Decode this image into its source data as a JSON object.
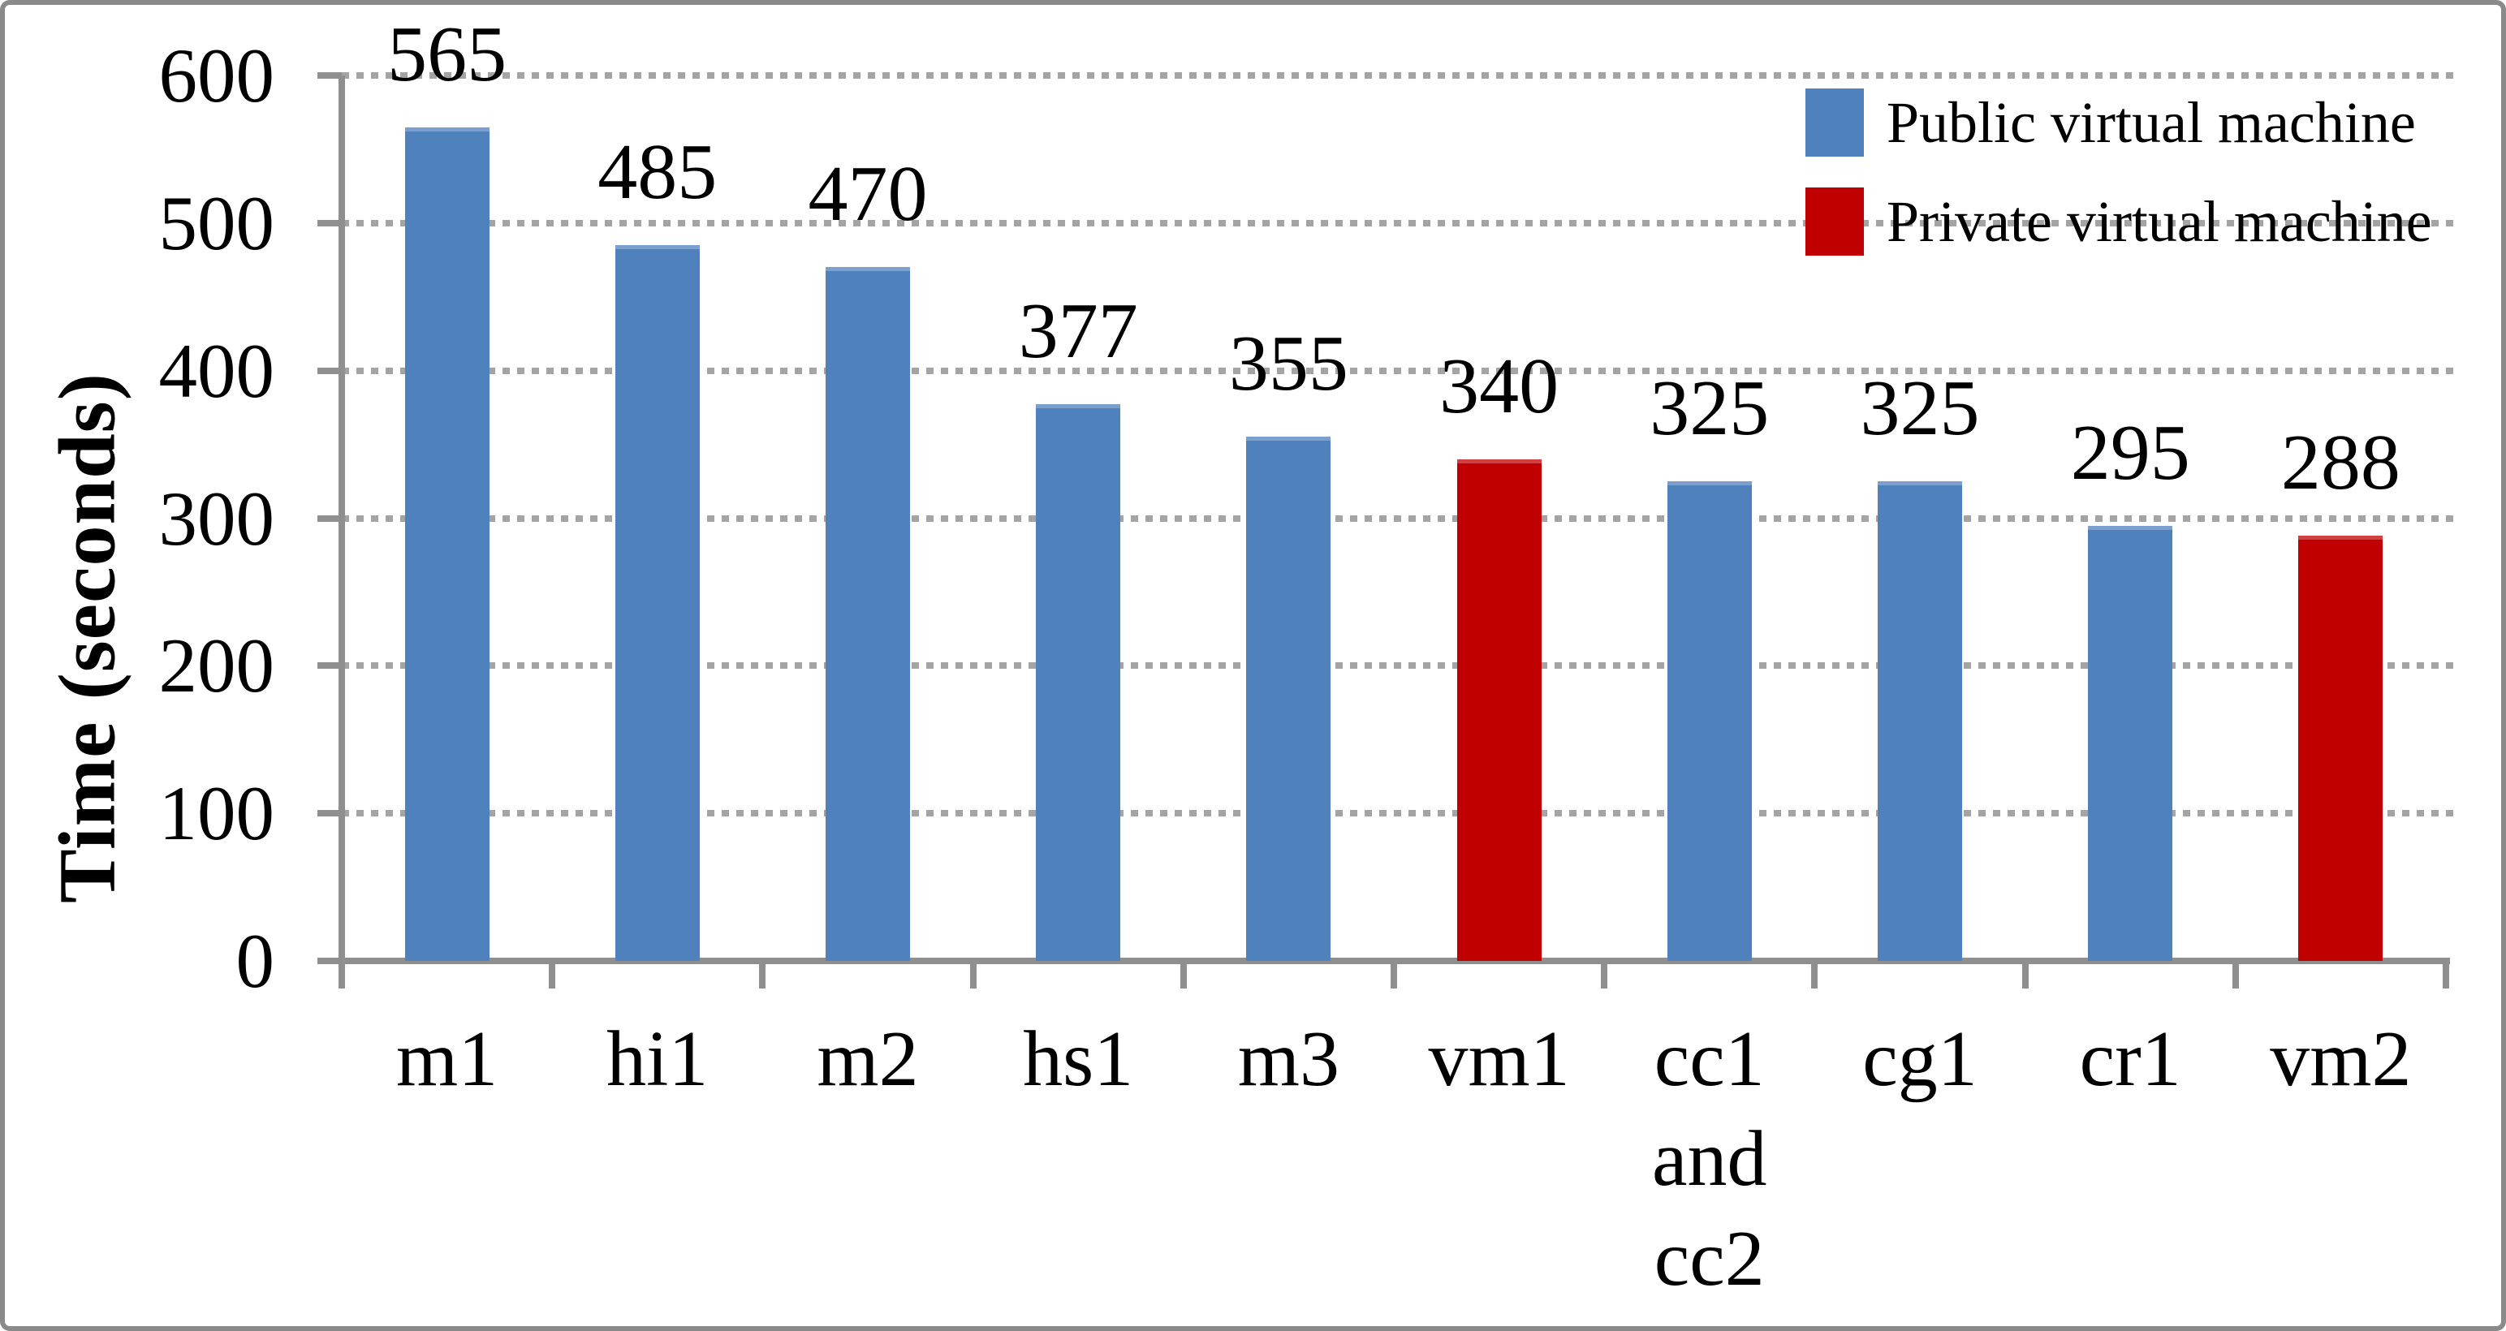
{
  "chart_data": {
    "type": "bar",
    "title": "",
    "ylabel": "Time (seconds)",
    "xlabel": "",
    "ylim": [
      0,
      600
    ],
    "yticks": [
      0,
      100,
      200,
      300,
      400,
      500,
      600
    ],
    "grid": "horizontal-dotted",
    "legend_position": "top-right",
    "categories": [
      "m1",
      "hi1",
      "m2",
      "hs1",
      "m3",
      "vm1",
      "cc1 and cc2",
      "cg1",
      "cr1",
      "vm2"
    ],
    "category_lines": [
      [
        "m1"
      ],
      [
        "hi1"
      ],
      [
        "m2"
      ],
      [
        "hs1"
      ],
      [
        "m3"
      ],
      [
        "vm1"
      ],
      [
        "cc1",
        "and",
        "cc2"
      ],
      [
        "cg1"
      ],
      [
        "cr1"
      ],
      [
        "vm2"
      ]
    ],
    "values": [
      565,
      485,
      470,
      377,
      355,
      340,
      325,
      325,
      295,
      288
    ],
    "series_index_per_bar": [
      0,
      0,
      0,
      0,
      0,
      1,
      0,
      0,
      0,
      1
    ],
    "series": [
      {
        "name": "Public virtual machine",
        "color": "#4F81BD"
      },
      {
        "name": "Private virtual machine",
        "color": "#C00000"
      }
    ],
    "colors": {
      "gridline": "#A4A4A4",
      "axis": "#8F8F8F",
      "frame_border": "#8A8A8A",
      "text": "#000000",
      "background": "#FFFFFF"
    }
  }
}
